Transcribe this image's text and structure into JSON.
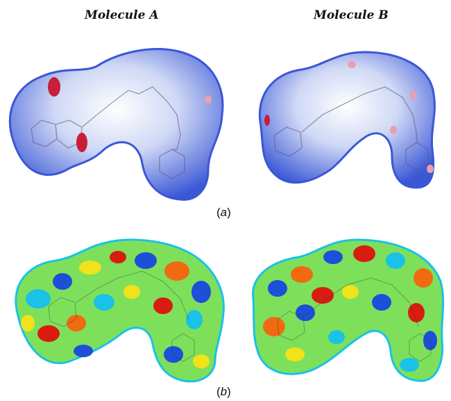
{
  "figure": {
    "titles": {
      "left": "Molecule A",
      "right": "Molecule B"
    },
    "captions": {
      "top": "(a)",
      "bottom": "(b)"
    },
    "panels": [
      {
        "row": "a",
        "molecule": "Molecule A",
        "surface": "d_norm",
        "colors": [
          "#3a57d6",
          "#cfd8f5",
          "#ffffff",
          "#c81e3a"
        ]
      },
      {
        "row": "a",
        "molecule": "Molecule B",
        "surface": "d_norm",
        "colors": [
          "#3a57d6",
          "#cfd8f5",
          "#ffffff",
          "#c81e3a"
        ]
      },
      {
        "row": "b",
        "molecule": "Molecule A",
        "surface": "shape-index",
        "colors": [
          "#1d4fd8",
          "#19c2e6",
          "#7ee05a",
          "#f2e21a",
          "#f06a12",
          "#d91c10"
        ]
      },
      {
        "row": "b",
        "molecule": "Molecule B",
        "surface": "shape-index",
        "colors": [
          "#1d4fd8",
          "#19c2e6",
          "#7ee05a",
          "#f2e21a",
          "#f06a12",
          "#d91c10"
        ]
      }
    ]
  }
}
